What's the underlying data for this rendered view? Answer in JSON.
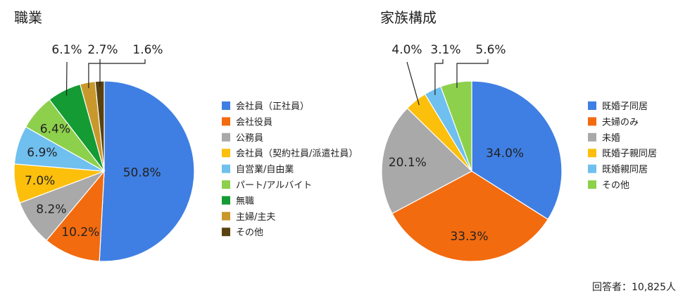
{
  "footer_note": "回答者：10,825人",
  "chart_data": [
    {
      "type": "pie",
      "title": "職業",
      "categories": [
        "会社員（正社員）",
        "会社役員",
        "公務員",
        "会社員（契約社員/派遣社員）",
        "自営業/自由業",
        "パート/アルバイト",
        "無職",
        "主婦/主夫",
        "その他"
      ],
      "values": [
        50.8,
        10.2,
        8.2,
        7.0,
        6.9,
        6.4,
        6.1,
        2.7,
        1.6
      ],
      "value_labels": [
        "50.8%",
        "10.2%",
        "8.2%",
        "7.0%",
        "6.9%",
        "6.4%",
        "6.1%",
        "2.7%",
        "1.6%"
      ],
      "colors": [
        "#3f7fe3",
        "#f26b0f",
        "#a9a9a9",
        "#fbbf0c",
        "#6fbfef",
        "#8dd04c",
        "#149b34",
        "#c9982c",
        "#5a4210"
      ],
      "start": "12 o'clock",
      "direction": "clockwise",
      "legend_position": "right"
    },
    {
      "type": "pie",
      "title": "家族構成",
      "categories": [
        "既婚子同居",
        "夫婦のみ",
        "未婚",
        "既婚子親同居",
        "既婚親同居",
        "その他"
      ],
      "values": [
        34.0,
        33.3,
        20.1,
        4.0,
        3.1,
        5.6
      ],
      "value_labels": [
        "34.0%",
        "33.3%",
        "20.1%",
        "4.0%",
        "3.1%",
        "5.6%"
      ],
      "colors": [
        "#3f7fe3",
        "#f26b0f",
        "#a9a9a9",
        "#fbbf0c",
        "#6fbfef",
        "#8dd04c"
      ],
      "start": "12 o'clock",
      "direction": "clockwise",
      "legend_position": "right"
    }
  ]
}
